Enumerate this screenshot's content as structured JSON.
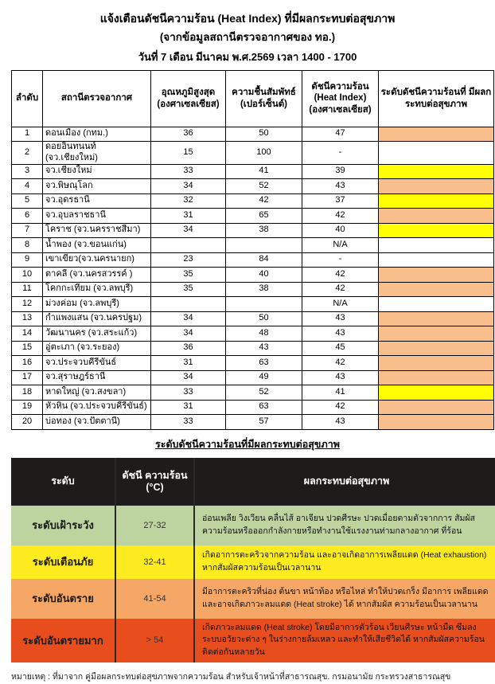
{
  "title": {
    "line1": "แจ้งเตือนดัชนีความร้อน (Heat Index) ที่มีผลกระทบต่อสุขภาพ",
    "line2": "(จากข้อมูลสถานีตรวจอากาศของ ทอ.)",
    "line3": "วันที่ 7 เดือน มีนาคม พ.ศ.2569 เวลา 1400 - 1700"
  },
  "colors": {
    "level_orange": "#F8BE8C",
    "level_yellow": "#FFFF00",
    "legend_green": "#BDD4A0",
    "legend_yellow": "#FFEC20",
    "legend_orange": "#F7A765",
    "legend_red": "#E84D1E",
    "legend_header_bg": "#1E1B1B"
  },
  "main_table": {
    "headers": {
      "no": "ลำดับ",
      "station": "สถานีตรวจอากาศ",
      "temp": "อุณหภูมิสูงสุด (องศาเซลเซียส)",
      "humidity": "ความชื้นสัมพัทธ์ (เปอร์เซ็นต์)",
      "heat_index": "ดัชนีความร้อน (Heat Index) (องศาเซลเซียส)",
      "level": "ระดับดัชนีความร้อนที่ มีผลกระทบต่อสุขภาพ"
    },
    "rows": [
      {
        "no": "1",
        "station": "ดอนเมือง (กทม.)",
        "temp": "36",
        "humidity": "50",
        "heat_index": "47",
        "level_color": "#F8BE8C"
      },
      {
        "no": "2",
        "station": "ดอยอินทนนท์ (จว.เชียงใหม่)",
        "temp": "15",
        "humidity": "100",
        "heat_index": "-",
        "level_color": ""
      },
      {
        "no": "3",
        "station": "จว.เชียงใหม่",
        "temp": "33",
        "humidity": "41",
        "heat_index": "39",
        "level_color": "#FFFF00"
      },
      {
        "no": "4",
        "station": "จว.พิษณุโลก",
        "temp": "34",
        "humidity": "52",
        "heat_index": "43",
        "level_color": "#F8BE8C"
      },
      {
        "no": "5",
        "station": "จว.อุดรธานี",
        "temp": "32",
        "humidity": "42",
        "heat_index": "37",
        "level_color": "#FFFF00"
      },
      {
        "no": "6",
        "station": "จว.อุบลราชธานี",
        "temp": "31",
        "humidity": "65",
        "heat_index": "42",
        "level_color": "#F8BE8C"
      },
      {
        "no": "7",
        "station": "โคราช (จว.นครราชสีมา)",
        "temp": "34",
        "humidity": "38",
        "heat_index": "40",
        "level_color": "#FFFF00"
      },
      {
        "no": "8",
        "station": "น้ำพอง (จว.ขอนแก่น)",
        "temp": "",
        "humidity": "",
        "heat_index": "N/A",
        "level_color": ""
      },
      {
        "no": "9",
        "station": "เขาเขียว(จว.นครนายก)",
        "temp": "23",
        "humidity": "84",
        "heat_index": "-",
        "level_color": ""
      },
      {
        "no": "10",
        "station": "ตาคลี (จว.นครสวรรค์ )",
        "temp": "35",
        "humidity": "40",
        "heat_index": "42",
        "level_color": "#F8BE8C"
      },
      {
        "no": "11",
        "station": "โคกกะเทียม (จว.ลพบุรี)",
        "temp": "35",
        "humidity": "38",
        "heat_index": "42",
        "level_color": "#F8BE8C"
      },
      {
        "no": "12",
        "station": "ม่วงค่อม (จว.ลพบุรี)",
        "temp": "",
        "humidity": "",
        "heat_index": "N/A",
        "level_color": ""
      },
      {
        "no": "13",
        "station": "กำแพงแสน (จว.นครปฐม)",
        "temp": "34",
        "humidity": "50",
        "heat_index": "43",
        "level_color": "#F8BE8C"
      },
      {
        "no": "14",
        "station": "วัฒนานคร (จว.สระแก้ว)",
        "temp": "34",
        "humidity": "48",
        "heat_index": "43",
        "level_color": "#F8BE8C"
      },
      {
        "no": "15",
        "station": "อู่ตะเภา (จว.ระยอง)",
        "temp": "36",
        "humidity": "43",
        "heat_index": "45",
        "level_color": "#F8BE8C"
      },
      {
        "no": "16",
        "station": "จว.ประจวบคีรีขันธ์",
        "temp": "31",
        "humidity": "63",
        "heat_index": "42",
        "level_color": "#F8BE8C"
      },
      {
        "no": "17",
        "station": "จว.สุราษฎร์ธานี",
        "temp": "34",
        "humidity": "49",
        "heat_index": "43",
        "level_color": "#F8BE8C"
      },
      {
        "no": "18",
        "station": "หาดใหญ่ (จว.สงขลา)",
        "temp": "33",
        "humidity": "52",
        "heat_index": "41",
        "level_color": "#FFFF00"
      },
      {
        "no": "19",
        "station": "หัวหิน (จว.ประจวบคีรีขันธ์)",
        "temp": "31",
        "humidity": "63",
        "heat_index": "42",
        "level_color": "#F8BE8C"
      },
      {
        "no": "20",
        "station": "บ่อทอง (จว.ปัตตานี)",
        "temp": "33",
        "humidity": "57",
        "heat_index": "43",
        "level_color": "#F8BE8C"
      }
    ]
  },
  "legend": {
    "section_title": "ระดับดัชนีความร้อนที่มีผลกระทบต่อสุขภาพ",
    "headers": {
      "level": "ระดับ",
      "index": "ดัชนี ความร้อน (°C)",
      "impact": "ผลกระทบต่อสุขภาพ"
    },
    "rows": [
      {
        "label": "ระดับเฝ้าระวัง",
        "range": "27-32",
        "description": "อ่อนเพลีย วิงเวียน คลื่นไส้ อาเจียน ปวดศีรษะ ปวดเมื่อยตามตัวจากการ สัมผัสความร้อนหรือออกกำลังกายหรือทำงานใช้แรงงานท่ามกลางอากาศ ที่ร้อน",
        "color": "#BDD4A0"
      },
      {
        "label": "ระดับเตือนภัย",
        "range": "32-41",
        "description": "เกิดอาการตะคริวจากความร้อน และอาจเกิดอาการเพลียแดด (Heat exhaustion) หากสัมผัสความร้อนเป็นเวลานาน",
        "color": "#FFEC20"
      },
      {
        "label": "ระดับอันตราย",
        "range": "41-54",
        "description": "มีอาการตะคริวที่น่อง ต้นขา หน้าท้อง หรือไหล่ ทำให้ปวดเกร็ง มีอาการ เพลียแดด และอาจเกิดภาวะลมแดด (Heat stroke) ได้ หากสัมผัส ความร้อนเป็นเวลานาน",
        "color": "#F7A765"
      },
      {
        "label": "ระดับอันตรายมาก",
        "range": "> 54",
        "description": "เกิดภาวะลมแดด (Heat stroke) โดยมีอาการตัวร้อน เวียนศีรษะ หน้ามืด ซึมลง ระบบอวัยวะต่าง ๆ ในร่างกายล้มเหลว และทำให้เสียชีวิตได้ หากสัมผัสความร้อนติดต่อกันหลายวัน",
        "color": "#E84D1E"
      }
    ]
  },
  "footnote": "หมายเหตุ : ที่มาจาก คู่มือผลกระทบต่อสุขภาพจากความร้อน สำหรับเจ้าหน้าที่สาธารณสุข. กรมอนามัย กระทรวงสาธารณสุข"
}
